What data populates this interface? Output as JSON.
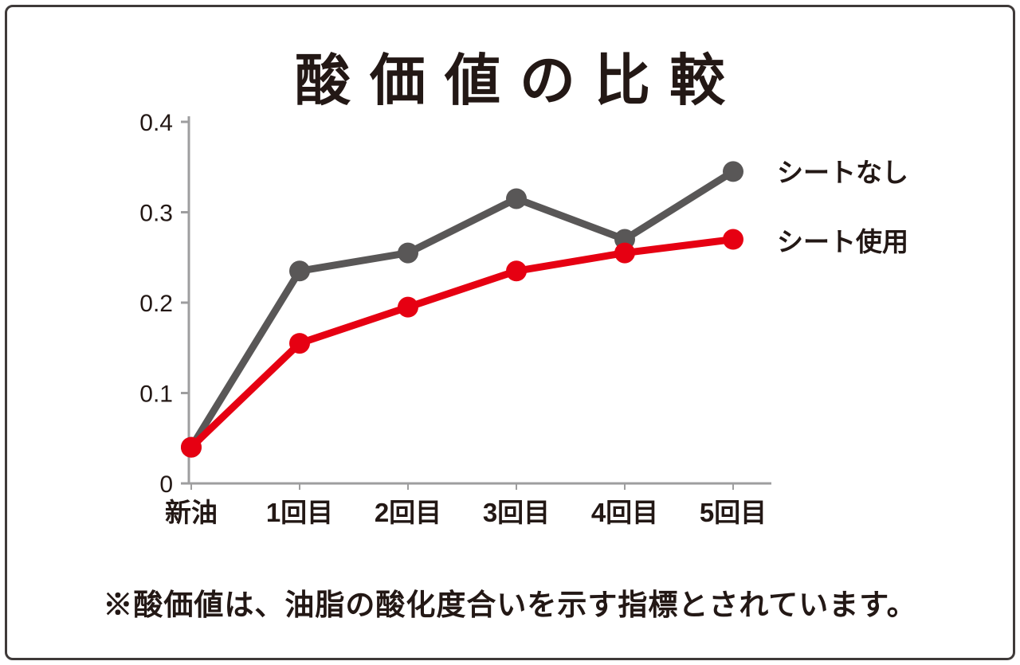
{
  "chart_data": {
    "type": "line",
    "title": "酸価値の比較",
    "categories": [
      "新油",
      "1回目",
      "2回目",
      "3回目",
      "4回目",
      "5回目"
    ],
    "series": [
      {
        "name": "シートなし",
        "color": "#595757",
        "values": [
          0.04,
          0.235,
          0.255,
          0.315,
          0.27,
          0.345
        ]
      },
      {
        "name": "シート使用",
        "color": "#e60012",
        "values": [
          0.04,
          0.155,
          0.195,
          0.235,
          0.255,
          0.27
        ]
      }
    ],
    "xlabel": "",
    "ylabel": "",
    "ylim": [
      0,
      0.4
    ],
    "yticks": [
      0,
      0.1,
      0.2,
      0.3,
      0.4
    ],
    "grid": false,
    "legend_position": "right-of-last-points"
  },
  "footnote": "※酸価値は、油脂の酸化度合いを示す指標とされています。",
  "colors": {
    "axis": "#9e9e9f",
    "text": "#231815",
    "border": "#3f3a39",
    "background": "#ffffff",
    "series_no_sheet": "#595757",
    "series_sheet_used": "#e60012"
  }
}
